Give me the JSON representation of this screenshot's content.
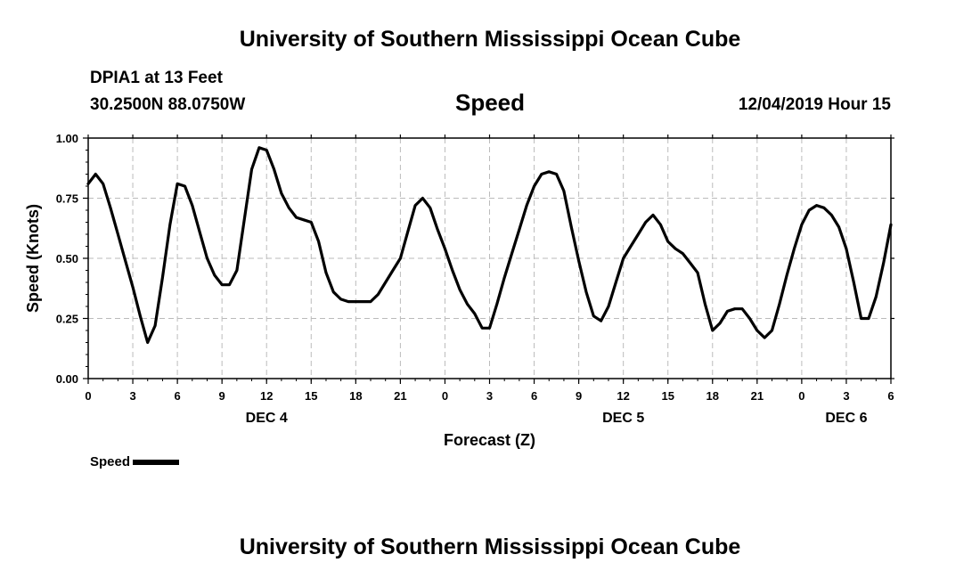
{
  "header": {
    "title": "University of Southern Mississippi Ocean Cube",
    "station": "DPIA1 at 13 Feet",
    "coords": "30.2500N 88.0750W",
    "subtitle": "Speed",
    "timestamp": "12/04/2019 Hour 15"
  },
  "footer": {
    "title": "University of Southern Mississippi Ocean Cube"
  },
  "legend": {
    "label": "Speed",
    "color": "#000000"
  },
  "chart_data": {
    "type": "line",
    "title": "Speed",
    "xlabel": "Forecast (Z)",
    "ylabel": "Speed (Knots)",
    "ylim": [
      0,
      1
    ],
    "xlim": [
      0,
      54
    ],
    "grid": true,
    "legend_position": "bottom-left",
    "y_ticks": [
      "0.00",
      "0.25",
      "0.50",
      "0.75",
      "1.00"
    ],
    "x_ticks": [
      "0",
      "3",
      "6",
      "9",
      "12",
      "15",
      "18",
      "21",
      "0",
      "3",
      "6",
      "9",
      "12",
      "15",
      "18",
      "21",
      "0",
      "3",
      "6"
    ],
    "day_labels": [
      {
        "label": "DEC 4",
        "x_hour": 12
      },
      {
        "label": "DEC 5",
        "x_hour": 36
      },
      {
        "label": "DEC 6",
        "x_hour": 51
      }
    ],
    "series": [
      {
        "name": "Speed",
        "color": "#000000",
        "x": [
          0,
          0.5,
          1,
          1.5,
          2,
          2.5,
          3,
          3.5,
          4,
          4.5,
          5,
          5.5,
          6,
          6.5,
          7,
          7.5,
          8,
          8.5,
          9,
          9.5,
          10,
          10.5,
          11,
          11.5,
          12,
          12.5,
          13,
          13.5,
          14,
          14.5,
          15,
          15.5,
          16,
          16.5,
          17,
          17.5,
          18,
          18.5,
          19,
          19.5,
          20,
          20.5,
          21,
          21.5,
          22,
          22.5,
          23,
          23.5,
          24,
          24.5,
          25,
          25.5,
          26,
          26.5,
          27,
          27.5,
          28,
          28.5,
          29,
          29.5,
          30,
          30.5,
          31,
          31.5,
          32,
          32.5,
          33,
          33.5,
          34,
          34.5,
          35,
          35.5,
          36,
          36.5,
          37,
          37.5,
          38,
          38.5,
          39,
          39.5,
          40,
          40.5,
          41,
          41.5,
          42,
          42.5,
          43,
          43.5,
          44,
          44.5,
          45,
          45.5,
          46,
          46.5,
          47,
          47.5,
          48,
          48.5,
          49,
          49.5,
          50,
          50.5,
          51,
          51.5,
          52,
          52.5,
          53,
          53.5,
          54
        ],
        "y": [
          0.81,
          0.85,
          0.81,
          0.71,
          0.6,
          0.49,
          0.38,
          0.26,
          0.15,
          0.22,
          0.42,
          0.64,
          0.81,
          0.8,
          0.72,
          0.61,
          0.5,
          0.43,
          0.39,
          0.39,
          0.45,
          0.66,
          0.87,
          0.96,
          0.95,
          0.87,
          0.77,
          0.71,
          0.67,
          0.66,
          0.65,
          0.57,
          0.44,
          0.36,
          0.33,
          0.32,
          0.32,
          0.32,
          0.32,
          0.35,
          0.4,
          0.45,
          0.5,
          0.61,
          0.72,
          0.75,
          0.71,
          0.62,
          0.54,
          0.45,
          0.37,
          0.31,
          0.27,
          0.21,
          0.21,
          0.31,
          0.42,
          0.52,
          0.62,
          0.72,
          0.8,
          0.85,
          0.86,
          0.85,
          0.78,
          0.63,
          0.49,
          0.36,
          0.26,
          0.24,
          0.3,
          0.4,
          0.5,
          0.55,
          0.6,
          0.65,
          0.68,
          0.64,
          0.57,
          0.54,
          0.52,
          0.48,
          0.44,
          0.31,
          0.2,
          0.23,
          0.28,
          0.29,
          0.29,
          0.25,
          0.2,
          0.17,
          0.2,
          0.31,
          0.43,
          0.54,
          0.64,
          0.7,
          0.72,
          0.71,
          0.68,
          0.63,
          0.54,
          0.4,
          0.25,
          0.25,
          0.34,
          0.48,
          0.64
        ]
      }
    ]
  }
}
